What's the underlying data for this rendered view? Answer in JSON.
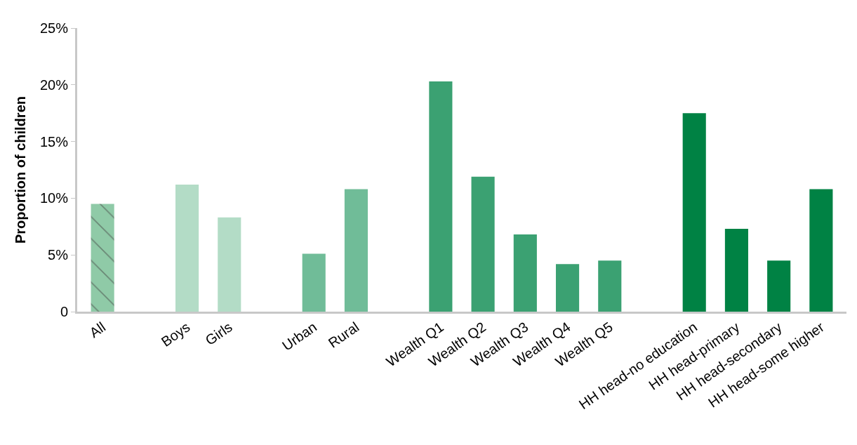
{
  "chart_data": {
    "type": "bar",
    "ylabel": "Proportion of children",
    "categories": [
      "All",
      null,
      "Boys",
      "Girls",
      null,
      "Urban",
      "Rural",
      null,
      "Wealth Q1",
      "Wealth Q2",
      "Wealth Q3",
      "Wealth Q4",
      "Wealth Q5",
      null,
      "HH head-no education",
      "HH head-primary",
      "HH head-secondary",
      "HH head-some higher"
    ],
    "values": [
      9.5,
      null,
      11.2,
      8.3,
      null,
      5.1,
      10.8,
      null,
      20.3,
      11.9,
      6.8,
      4.2,
      4.5,
      null,
      17.5,
      7.3,
      4.5,
      10.8
    ],
    "colors": [
      "#8fcaa7",
      null,
      "#b3dcc6",
      "#b3dcc6",
      null,
      "#70bc98",
      "#70bc98",
      null,
      "#3ba172",
      "#3ba172",
      "#3ba172",
      "#3ba172",
      "#3ba172",
      null,
      "#008244",
      "#008244",
      "#008244",
      "#008244"
    ],
    "ylim": [
      0,
      25
    ],
    "yticks": [
      0,
      {
        "value": 5,
        "label": "5%"
      },
      {
        "value": 10,
        "label": "10%"
      },
      {
        "value": 15,
        "label": "15%"
      },
      {
        "value": 20,
        "label": "20%"
      },
      {
        "value": 25,
        "label": "25%"
      }
    ]
  }
}
